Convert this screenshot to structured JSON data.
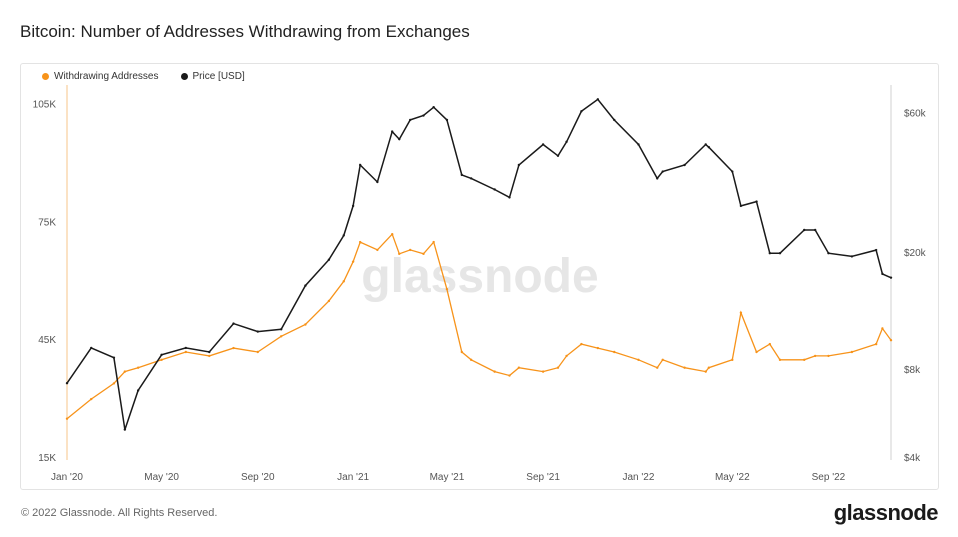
{
  "title": "Bitcoin: Number of Addresses Withdrawing from Exchanges",
  "footer": "© 2022 Glassnode. All Rights Reserved.",
  "brand": "glassnode",
  "watermark": "glassnode",
  "colors": {
    "orange": "#f7931a",
    "price": "#1a1a1a"
  },
  "chart_data": {
    "type": "line",
    "x": [
      "2020-01-01",
      "2020-02-01",
      "2020-03-01",
      "2020-03-15",
      "2020-04-01",
      "2020-05-01",
      "2020-06-01",
      "2020-07-01",
      "2020-08-01",
      "2020-09-01",
      "2020-10-01",
      "2020-11-01",
      "2020-12-01",
      "2020-12-20",
      "2021-01-01",
      "2021-01-10",
      "2021-02-01",
      "2021-02-20",
      "2021-03-01",
      "2021-03-15",
      "2021-04-01",
      "2021-04-14",
      "2021-05-01",
      "2021-05-20",
      "2021-06-01",
      "2021-07-01",
      "2021-07-20",
      "2021-08-01",
      "2021-09-01",
      "2021-09-20",
      "2021-10-01",
      "2021-10-20",
      "2021-11-10",
      "2021-12-01",
      "2022-01-01",
      "2022-01-25",
      "2022-02-01",
      "2022-03-01",
      "2022-03-28",
      "2022-04-01",
      "2022-05-01",
      "2022-05-12",
      "2022-06-01",
      "2022-06-18",
      "2022-07-01",
      "2022-08-01",
      "2022-08-15",
      "2022-09-01",
      "2022-10-01",
      "2022-11-01",
      "2022-11-09",
      "2022-11-20"
    ],
    "series": [
      {
        "name": "Withdrawing Addresses",
        "axis": "left",
        "values": [
          25000,
          30000,
          34000,
          37000,
          38000,
          40000,
          42000,
          41000,
          43000,
          42000,
          46000,
          49000,
          55000,
          60000,
          65000,
          70000,
          68000,
          72000,
          67000,
          68000,
          67000,
          70000,
          58000,
          42000,
          40000,
          37000,
          36000,
          38000,
          37000,
          38000,
          41000,
          44000,
          43000,
          42000,
          40000,
          38000,
          40000,
          38000,
          37000,
          38000,
          40000,
          52000,
          42000,
          44000,
          40000,
          40000,
          41000,
          41000,
          42000,
          44000,
          48000,
          45000
        ]
      },
      {
        "name": "Price [USD]",
        "axis": "right",
        "values": [
          7200,
          9500,
          8800,
          5000,
          6800,
          9000,
          9500,
          9200,
          11500,
          10800,
          11000,
          15500,
          19000,
          23000,
          29000,
          40000,
          35000,
          52000,
          49000,
          57000,
          59000,
          63000,
          57000,
          37000,
          36000,
          33000,
          31000,
          40000,
          47000,
          43000,
          48000,
          61000,
          67000,
          57000,
          47000,
          36000,
          38000,
          40000,
          47000,
          46000,
          38000,
          29000,
          30000,
          20000,
          20000,
          24000,
          24000,
          20000,
          19500,
          20500,
          17000,
          16500
        ]
      }
    ],
    "xticks": [
      "Jan '20",
      "May '20",
      "Sep '20",
      "Jan '21",
      "May '21",
      "Sep '21",
      "Jan '22",
      "May '22",
      "Sep '22"
    ],
    "yticks_left": [
      "15K",
      "45K",
      "75K",
      "105K"
    ],
    "yticks_right": [
      "$4k",
      "$8k",
      "$20k",
      "$60k"
    ],
    "ylim_left": [
      15000,
      110000
    ],
    "ylim_right": [
      4000,
      75000
    ],
    "y_right_scale": "log",
    "grid": false,
    "legend": "top-left"
  }
}
